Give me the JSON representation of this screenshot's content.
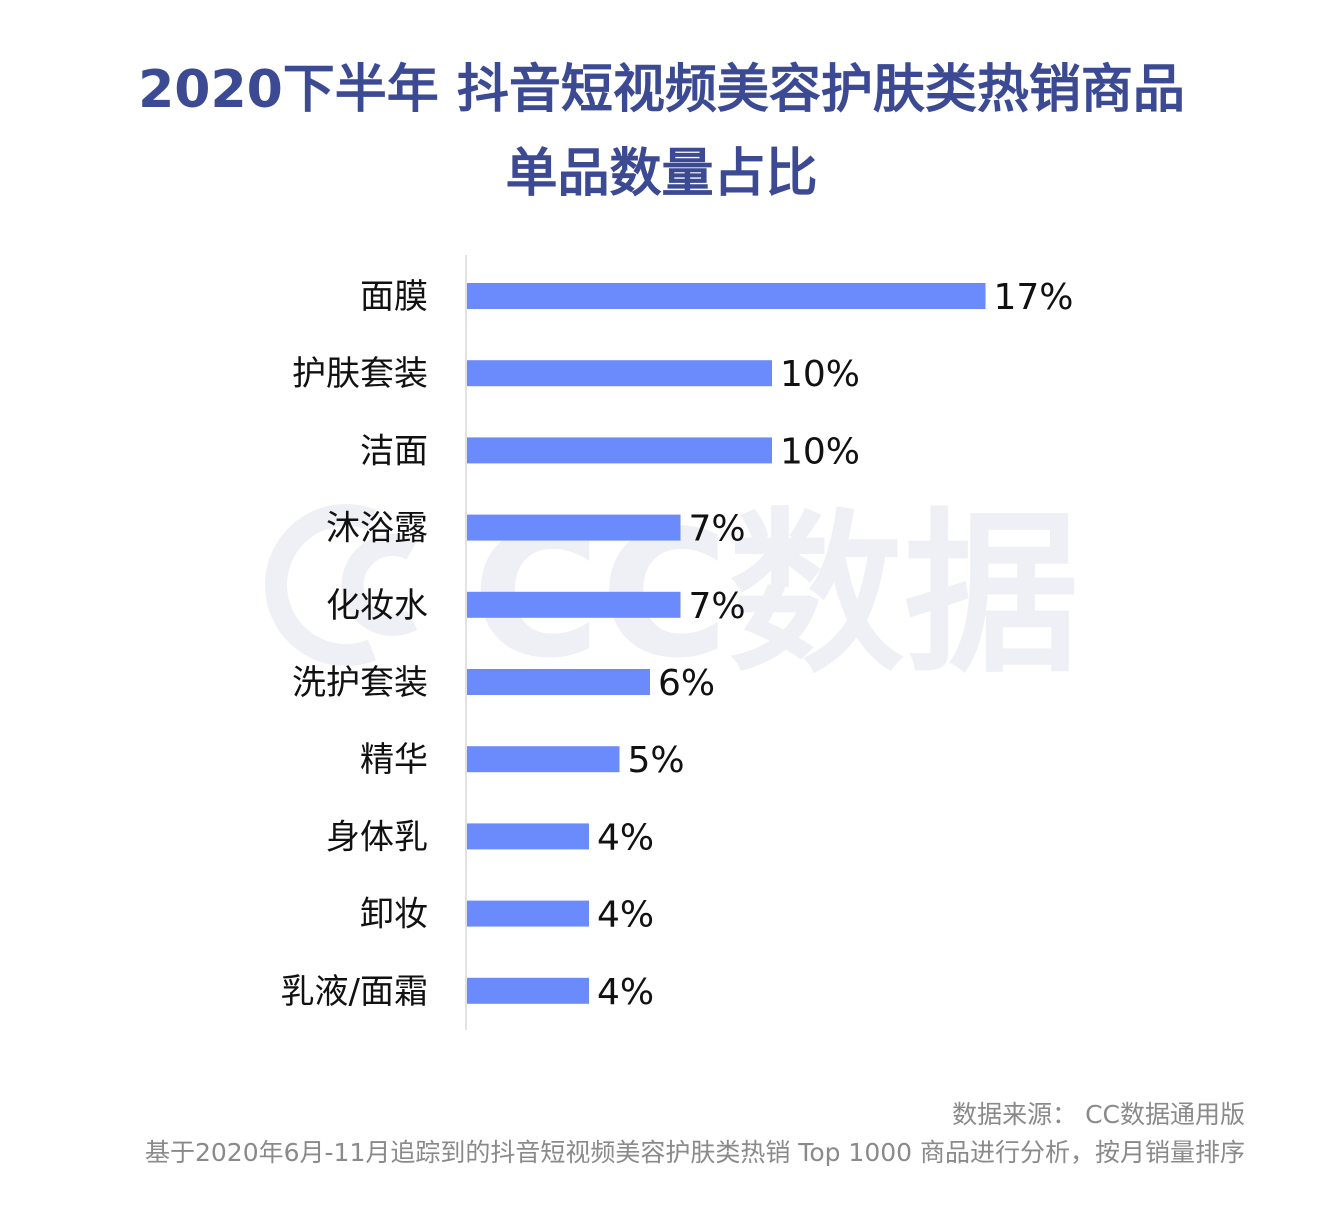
{
  "chart_data": {
    "type": "bar",
    "orientation": "horizontal",
    "title_line1": "2020下半年 抖音短视频美容护肤类热销商品",
    "title_line2": "单品数量占比",
    "categories": [
      "面膜",
      "护肤套装",
      "洁面",
      "沐浴露",
      "化妆水",
      "洗护套装",
      "精华",
      "身体乳",
      "卸妆",
      "乳液/面霜"
    ],
    "values": [
      17,
      10,
      10,
      7,
      7,
      6,
      5,
      4,
      4,
      4
    ],
    "value_labels": [
      "17%",
      "10%",
      "10%",
      "7%",
      "7%",
      "6%",
      "5%",
      "4%",
      "4%",
      "4%"
    ],
    "bar_color": "#6b8bfd",
    "axis_color": "#d9d9d9",
    "grid": false,
    "legend": "none"
  },
  "watermark": {
    "text": "CC数据",
    "color": "#eef0f6"
  },
  "footer": {
    "source": "数据来源： CC数据通用版",
    "note": "基于2020年6月-11月追踪到的抖音短视频美容护肤类热销 Top 1000 商品进行分析，按月销量排序"
  }
}
